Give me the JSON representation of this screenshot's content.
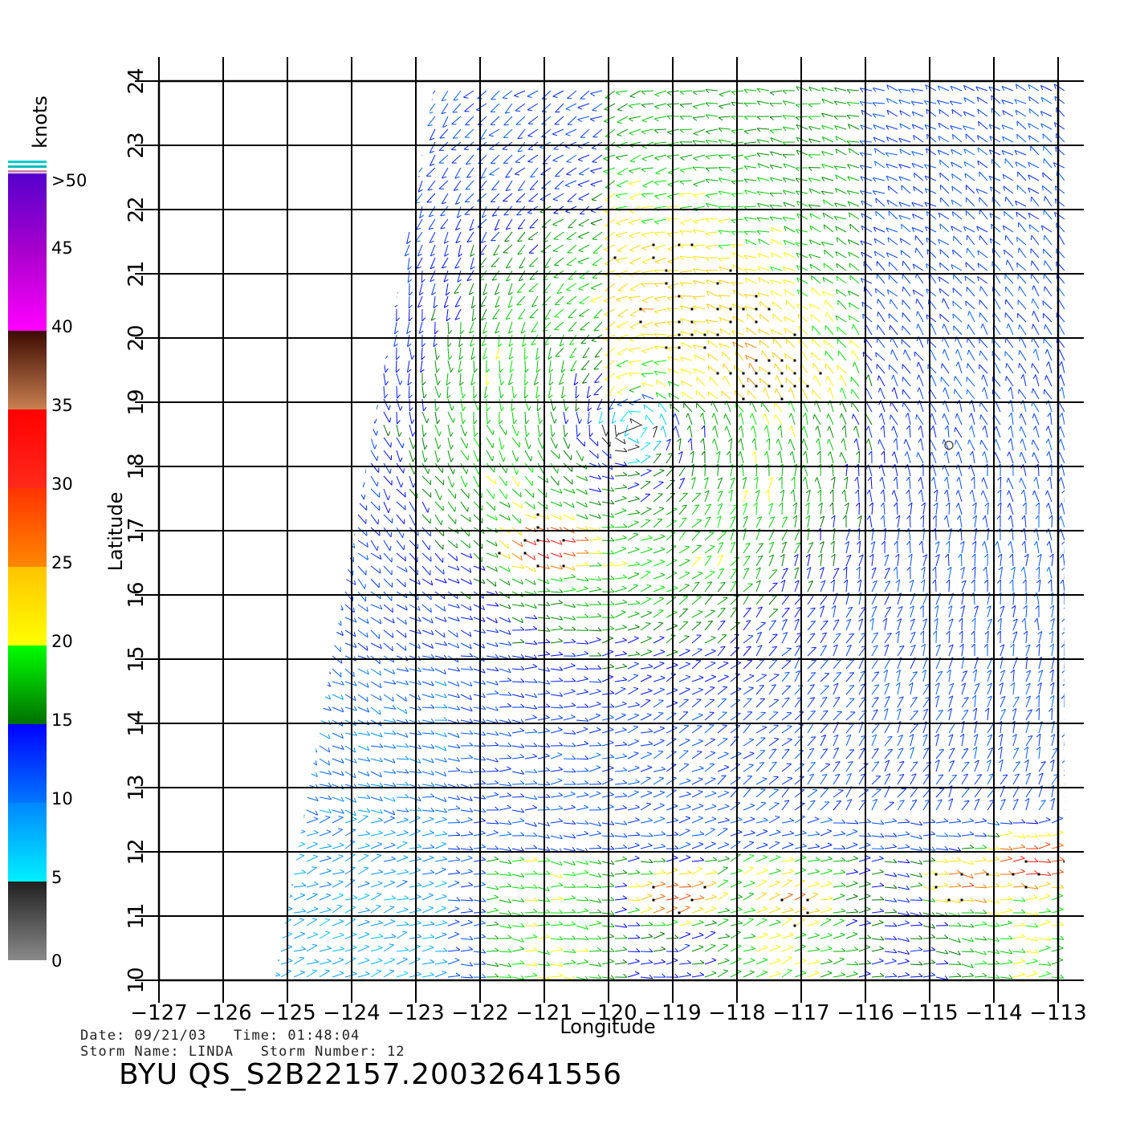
{
  "map": {
    "lon_range": [
      -127,
      -113
    ],
    "lat_range": [
      10,
      24
    ],
    "lon_ticks": [
      "-127",
      "-126",
      "-125",
      "-124",
      "-123",
      "-122",
      "-121",
      "-120",
      "-119",
      "-118",
      "-117",
      "-116",
      "-115",
      "-114",
      "-113"
    ],
    "lat_ticks": [
      "10",
      "11",
      "12",
      "13",
      "14",
      "15",
      "16",
      "17",
      "18",
      "19",
      "20",
      "21",
      "22",
      "23",
      "24"
    ],
    "x_label": "Longitude",
    "y_label": "Latitude",
    "swath_corners_lonlat": [
      [
        -125.2,
        10
      ],
      [
        -112.9,
        10
      ],
      [
        -112.9,
        24
      ],
      [
        -122.7,
        24
      ]
    ],
    "storm_center_lonlat": [
      -119.6,
      18.6
    ],
    "high_wind_regions": [
      {
        "lon": -121.0,
        "lat": 16.8,
        "peak_knots": 33
      },
      {
        "lon": -113.5,
        "lat": 11.8,
        "peak_knots": 33
      },
      {
        "lon": -119.0,
        "lat": 11.3,
        "peak_knots": 30
      },
      {
        "lon": -114.5,
        "lat": 11.5,
        "peak_knots": 28
      },
      {
        "lon": -117.2,
        "lat": 11.2,
        "peak_knots": 27
      }
    ]
  },
  "colorbar": {
    "unit_label": "knots",
    "tick_labels": [
      "0",
      "5",
      "10",
      "15",
      "20",
      "25",
      "30",
      "35",
      "40",
      "45",
      ">50"
    ],
    "bands": [
      {
        "from": 0,
        "to": 5,
        "colors": [
          "#8a8a8a",
          "#202020"
        ]
      },
      {
        "from": 5,
        "to": 10,
        "colors": [
          "#00f0ff",
          "#0088ff"
        ]
      },
      {
        "from": 10,
        "to": 15,
        "colors": [
          "#0077ff",
          "#0000ff"
        ]
      },
      {
        "from": 15,
        "to": 20,
        "colors": [
          "#007000",
          "#00ff00"
        ]
      },
      {
        "from": 20,
        "to": 25,
        "colors": [
          "#ffff00",
          "#ffc400"
        ]
      },
      {
        "from": 25,
        "to": 30,
        "colors": [
          "#ff8800",
          "#ff3300"
        ]
      },
      {
        "from": 30,
        "to": 35,
        "colors": [
          "#ff2a1a",
          "#ff0000"
        ]
      },
      {
        "from": 35,
        "to": 40,
        "colors": [
          "#c88050",
          "#3c0a00"
        ]
      },
      {
        "from": 40,
        "to": 45,
        "colors": [
          "#ff00ff",
          "#aa00cc"
        ]
      },
      {
        "from": 45,
        "to": 50,
        "colors": [
          "#aa00cc",
          "#5500cc"
        ]
      }
    ],
    "overflow_colors": [
      "#cc88aa",
      "#ffffff",
      "#00bbbb",
      "#ffffff",
      "#00cccc"
    ]
  },
  "info": {
    "date_line": "Date: 09/21/03   Time: 01:48:04",
    "storm_line": "Storm Name: LINDA   Storm Number: 12",
    "file_title": "BYU QS_S2B22157.20032641556"
  }
}
